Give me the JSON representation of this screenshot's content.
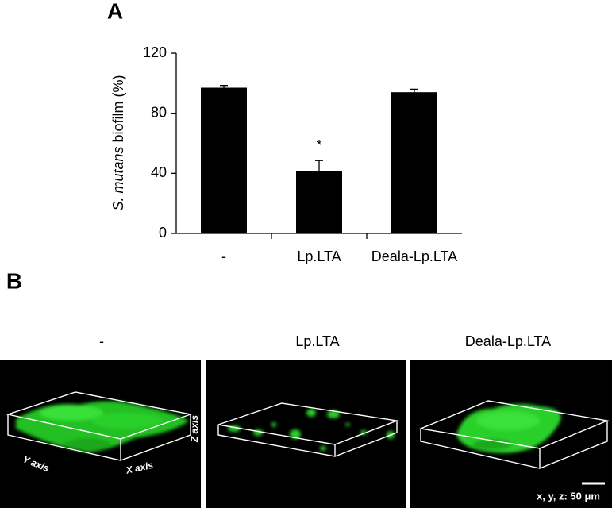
{
  "chart_data": {
    "type": "bar",
    "panel_label": "A",
    "y_label": [
      "S. mutans",
      "biofilm (%)"
    ],
    "categories": [
      "-",
      "Lp.LTA",
      "Deala-Lp.LTA"
    ],
    "values": [
      97,
      41.5,
      94
    ],
    "errors": [
      1.5,
      7,
      2
    ],
    "color": "#000000",
    "annotations": [
      {
        "category": 1,
        "text": "*"
      }
    ],
    "ylim": [
      0,
      120
    ],
    "yticks": [
      0,
      40,
      80,
      120
    ],
    "grid": false
  },
  "images": {
    "panel_label": "B",
    "labels": [
      "-",
      "Lp.LTA",
      "Deala-Lp.LTA"
    ],
    "axis_labels": [
      "Y axis",
      "X axis",
      "Z axis"
    ],
    "scale_bar": "x, y, z: 50 μm"
  }
}
